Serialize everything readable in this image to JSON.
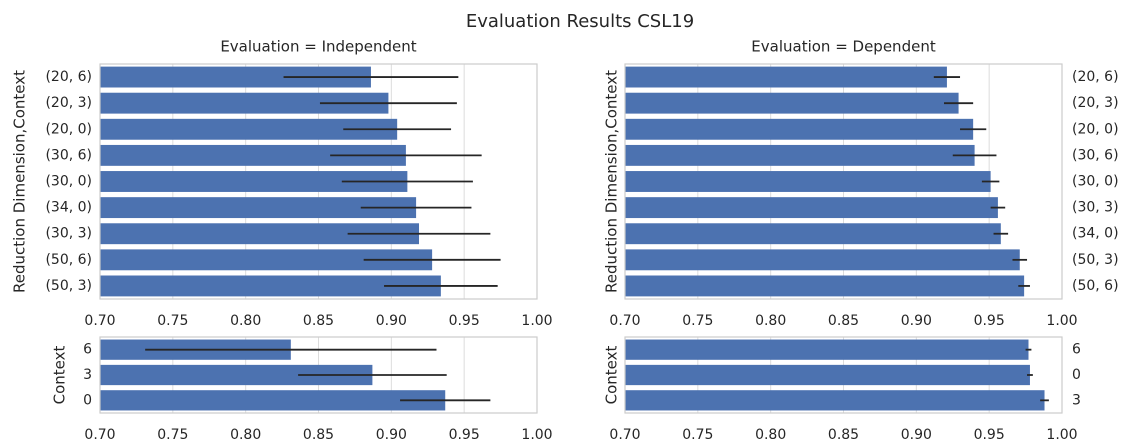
{
  "title": "Evaluation Results CSL19",
  "chart_data": [
    {
      "type": "hbar",
      "title": "Evaluation = Independent",
      "ylabel": "Reduction Dimension,Context",
      "ytick_side": "left",
      "categories": [
        "(20, 6)",
        "(20, 3)",
        "(20, 0)",
        "(30, 6)",
        "(30, 0)",
        "(34, 0)",
        "(30, 3)",
        "(50, 6)",
        "(50, 3)"
      ],
      "values": [
        0.886,
        0.898,
        0.904,
        0.91,
        0.911,
        0.917,
        0.919,
        0.928,
        0.934
      ],
      "errors": [
        0.06,
        0.047,
        0.037,
        0.052,
        0.045,
        0.038,
        0.049,
        0.047,
        0.039
      ],
      "color": "#4c72b0",
      "grid": true,
      "xlim": [
        0.7,
        1.0
      ],
      "xticks": [
        {
          "value": 0.7,
          "label": "0.70"
        },
        {
          "value": 0.75,
          "label": "0.75"
        },
        {
          "value": 0.8,
          "label": "0.80"
        },
        {
          "value": 0.85,
          "label": "0.85"
        },
        {
          "value": 0.9,
          "label": "0.90"
        },
        {
          "value": 0.95,
          "label": "0.95"
        },
        {
          "value": 1.0,
          "label": "1.00"
        }
      ]
    },
    {
      "type": "hbar",
      "title": "Evaluation = Dependent",
      "ylabel": "Reduction Dimension,Context",
      "ytick_side": "right",
      "categories": [
        "(20, 6)",
        "(20, 3)",
        "(20, 0)",
        "(30, 6)",
        "(30, 0)",
        "(30, 3)",
        "(34, 0)",
        "(50, 3)",
        "(50, 6)"
      ],
      "values": [
        0.921,
        0.929,
        0.939,
        0.94,
        0.951,
        0.956,
        0.958,
        0.971,
        0.974
      ],
      "errors": [
        0.009,
        0.01,
        0.009,
        0.015,
        0.006,
        0.005,
        0.005,
        0.005,
        0.004
      ],
      "color": "#4c72b0",
      "grid": true,
      "xlim": [
        0.7,
        1.0
      ],
      "xticks": [
        {
          "value": 0.7,
          "label": "0.70"
        },
        {
          "value": 0.75,
          "label": "0.75"
        },
        {
          "value": 0.8,
          "label": "0.80"
        },
        {
          "value": 0.85,
          "label": "0.85"
        },
        {
          "value": 0.9,
          "label": "0.90"
        },
        {
          "value": 0.95,
          "label": "0.95"
        },
        {
          "value": 1.0,
          "label": "1.00"
        }
      ]
    },
    {
      "type": "hbar",
      "ylabel": "Context",
      "ytick_side": "left",
      "categories": [
        "6",
        "3",
        "0"
      ],
      "values": [
        0.831,
        0.887,
        0.937
      ],
      "errors": [
        0.1,
        0.051,
        0.031
      ],
      "color": "#4c72b0",
      "grid": true,
      "xlim": [
        0.7,
        1.0
      ],
      "xticks": [
        {
          "value": 0.7,
          "label": "0.70"
        },
        {
          "value": 0.75,
          "label": "0.75"
        },
        {
          "value": 0.8,
          "label": "0.80"
        },
        {
          "value": 0.85,
          "label": "0.85"
        },
        {
          "value": 0.9,
          "label": "0.90"
        },
        {
          "value": 0.95,
          "label": "0.95"
        },
        {
          "value": 1.0,
          "label": "1.00"
        }
      ]
    },
    {
      "type": "hbar",
      "ylabel": "Context",
      "ytick_side": "right",
      "categories": [
        "6",
        "0",
        "3"
      ],
      "values": [
        0.977,
        0.978,
        0.988
      ],
      "errors": [
        0.002,
        0.002,
        0.003
      ],
      "color": "#4c72b0",
      "grid": true,
      "xlim": [
        0.7,
        1.0
      ],
      "xticks": [
        {
          "value": 0.7,
          "label": "0.70"
        },
        {
          "value": 0.75,
          "label": "0.75"
        },
        {
          "value": 0.8,
          "label": "0.80"
        },
        {
          "value": 0.85,
          "label": "0.85"
        },
        {
          "value": 0.9,
          "label": "0.90"
        },
        {
          "value": 0.95,
          "label": "0.95"
        },
        {
          "value": 1.0,
          "label": "1.00"
        }
      ]
    }
  ]
}
